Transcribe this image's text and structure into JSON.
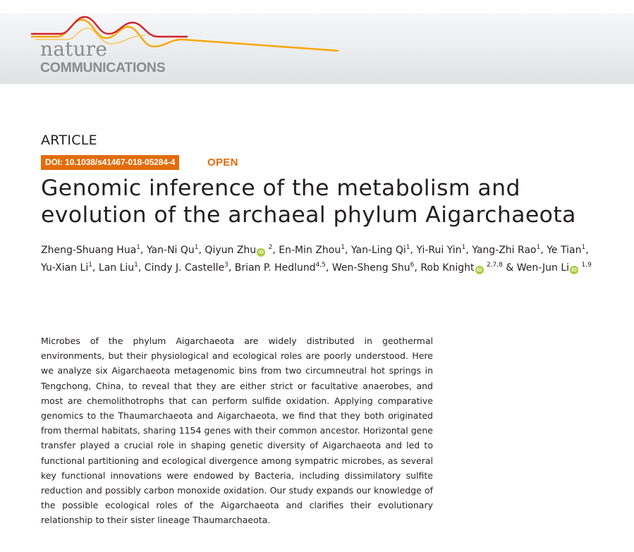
{
  "journal": {
    "line1": "nature",
    "line2": "COMMUNICATIONS"
  },
  "article_type": "ARTICLE",
  "doi": "DOI: 10.1038/s41467-018-05284-4",
  "open_access": "OPEN",
  "title": "Genomic inference of the metabolism and evolution of the archaeal phylum Aigarchaeota",
  "authors": [
    {
      "name": "Zheng-Shuang Hua",
      "aff": "1",
      "orcid": false,
      "sep": ", "
    },
    {
      "name": "Yan-Ni Qu",
      "aff": "1",
      "orcid": false,
      "sep": ", "
    },
    {
      "name": "Qiyun Zhu",
      "aff": "2",
      "orcid": true,
      "sep": ", "
    },
    {
      "name": "En-Min Zhou",
      "aff": "1",
      "orcid": false,
      "sep": ", "
    },
    {
      "name": "Yan-Ling Qi",
      "aff": "1",
      "orcid": false,
      "sep": ", "
    },
    {
      "name": "Yi-Rui Yin",
      "aff": "1",
      "orcid": false,
      "sep": ", "
    },
    {
      "name": "Yang-Zhi Rao",
      "aff": "1",
      "orcid": false,
      "sep": ", "
    },
    {
      "name": "Ye Tian",
      "aff": "1",
      "orcid": false,
      "sep": ", "
    },
    {
      "name": "Yu-Xian Li",
      "aff": "1",
      "orcid": false,
      "sep": ", "
    },
    {
      "name": "Lan Liu",
      "aff": "1",
      "orcid": false,
      "sep": ", "
    },
    {
      "name": "Cindy J. Castelle",
      "aff": "3",
      "orcid": false,
      "sep": ", "
    },
    {
      "name": "Brian P. Hedlund",
      "aff": "4,5",
      "orcid": false,
      "sep": ", "
    },
    {
      "name": "Wen-Sheng Shu",
      "aff": "6",
      "orcid": false,
      "sep": ", "
    },
    {
      "name": "Rob Knight",
      "aff": "2,7,8",
      "orcid": true,
      "sep": " & "
    },
    {
      "name": "Wen-Jun Li",
      "aff": "1,9",
      "orcid": true,
      "sep": ""
    }
  ],
  "orcid_glyph": "iD",
  "abstract": "Microbes of the phylum Aigarchaeota are widely distributed in geothermal environments, but their physiological and ecological roles are poorly understood. Here we analyze six Aigarchaeota metagenomic bins from two circumneutral hot springs in Tengchong, China, to reveal that they are either strict or facultative anaerobes, and most are chemolithotrophs that can perform sulfide oxidation. Applying comparative genomics to the Thaumarchaeota and Aigarchaeota, we find that they both originated from thermal habitats, sharing 1154 genes with their common ancestor. Horizontal gene transfer played a crucial role in shaping genetic diversity of Aigarchaeota and led to functional partitioning and ecological divergence among sympatric microbes, as several key functional innovations were endowed by Bacteria, including dissimilatory sulfite reduction and possibly carbon monoxide oxidation. Our study expands our knowledge of the possible ecological roles of the Aigarchaeota and clarifies their evolutionary relationship to their sister lineage Thaumarchaeota.",
  "colors": {
    "accent_orange": "#e36c0a",
    "logo_red": "#d2232a",
    "logo_yellow": "#f7a600",
    "orcid_green": "#a6ce39",
    "logo_gray": "#8a8c8f"
  }
}
